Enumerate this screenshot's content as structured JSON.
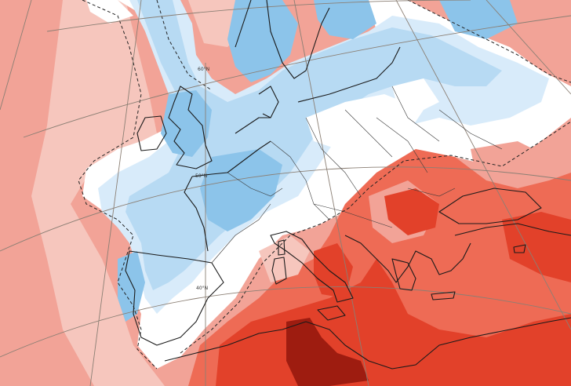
{
  "colors": {
    "warm_light": "#f6c6bd",
    "warm_medium": "#f2a397",
    "warm_strong": "#ee6b55",
    "warm_intense": "#e2412a",
    "warm_extreme": "#9e1c10",
    "neutral": "#ffffff",
    "cool_light": "#d8ebfa",
    "cool_medium": "#b7daf3",
    "cool_strong": "#8cc4ea"
  },
  "latitude_labels": {
    "lat60": "60°N",
    "lat50": "50°N",
    "lat40": "40°N"
  }
}
